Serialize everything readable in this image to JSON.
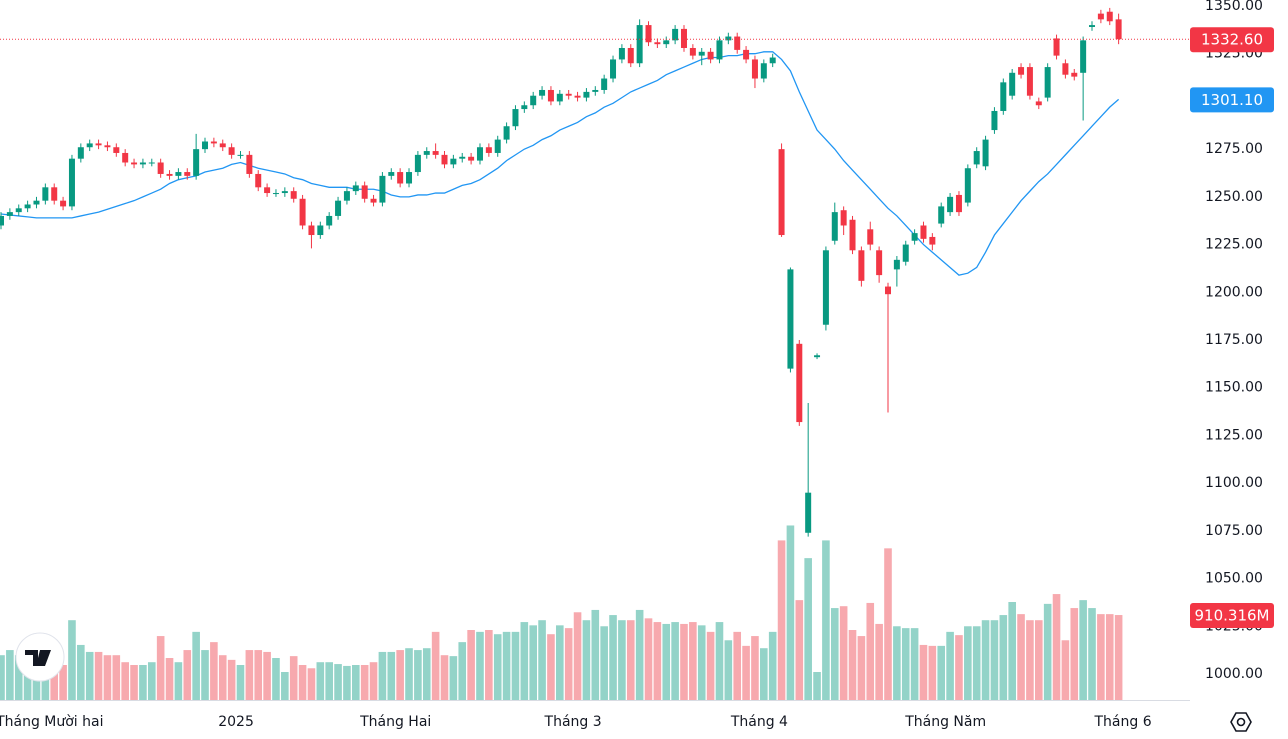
{
  "chart_data": {
    "type": "candlestick",
    "ylim": [
      1000,
      1350
    ],
    "yticks": [
      {
        "value": 1000,
        "label": "1000.00"
      },
      {
        "value": 1025,
        "label": "1025.00"
      },
      {
        "value": 1050,
        "label": "1050.00"
      },
      {
        "value": 1075,
        "label": "1075.00"
      },
      {
        "value": 1100,
        "label": "1100.00"
      },
      {
        "value": 1125,
        "label": "1125.00"
      },
      {
        "value": 1150,
        "label": "1150.00"
      },
      {
        "value": 1175,
        "label": "1175.00"
      },
      {
        "value": 1200,
        "label": "1200.00"
      },
      {
        "value": 1225,
        "label": "1225.00"
      },
      {
        "value": 1250,
        "label": "1250.00"
      },
      {
        "value": 1275,
        "label": "1275.00"
      },
      {
        "value": 1300,
        "label": "1300.00"
      },
      {
        "value": 1325,
        "label": "1325.00"
      },
      {
        "value": 1350,
        "label": "1350.00"
      }
    ],
    "time_labels": [
      {
        "index": 6,
        "label": "Tháng Mười hai"
      },
      {
        "index": 27,
        "label": "2025"
      },
      {
        "index": 45,
        "label": "Tháng Hai"
      },
      {
        "index": 65,
        "label": "Tháng 3"
      },
      {
        "index": 86,
        "label": "Tháng 4"
      },
      {
        "index": 107,
        "label": "Tháng Năm"
      },
      {
        "index": 127,
        "label": "Tháng 6"
      }
    ],
    "up_color": "#089981",
    "down_color": "#f23645",
    "volume_up_color": "#93d3c8",
    "volume_down_color": "#f7a9ae",
    "ma_color": "#2196f3",
    "candles": {
      "open": [
        1235,
        1240,
        1242,
        1244,
        1246,
        1248,
        1255,
        1248,
        1245,
        1270,
        1276,
        1278,
        1277,
        1276,
        1273,
        1268,
        1267,
        1268,
        1268,
        1262,
        1261,
        1263,
        1261,
        1275,
        1279,
        1278,
        1276,
        1272,
        1272,
        1262,
        1255,
        1252,
        1252,
        1253,
        1249,
        1235,
        1230,
        1235,
        1240,
        1248,
        1253,
        1256,
        1249,
        1247,
        1261,
        1263,
        1257,
        1263,
        1272,
        1274,
        1272,
        1267,
        1270,
        1271,
        1269,
        1276,
        1273,
        1280,
        1287,
        1296,
        1298,
        1303,
        1306,
        1300,
        1304,
        1303,
        1302,
        1305,
        1306,
        1312,
        1322,
        1328,
        1320,
        1340,
        1331,
        1330,
        1332,
        1338,
        1328,
        1324,
        1326,
        1322,
        1332,
        1334,
        1327,
        1322,
        1312,
        1320,
        1275,
        1160,
        1173,
        1074,
        1166,
        1183,
        1227,
        1243,
        1238,
        1222,
        1233,
        1222,
        1203,
        1212,
        1216,
        1227,
        1235,
        1229,
        1236,
        1242,
        1251,
        1247,
        1267,
        1266,
        1285,
        1295,
        1303,
        1318,
        1318,
        1300,
        1302,
        1333,
        1320,
        1315,
        1315,
        1339,
        1346,
        1347,
        1343
      ],
      "high": [
        1242,
        1244,
        1246,
        1248,
        1250,
        1257,
        1257,
        1250,
        1272,
        1278,
        1280,
        1280,
        1279,
        1278,
        1275,
        1270,
        1270,
        1270,
        1270,
        1264,
        1265,
        1265,
        1283,
        1281,
        1281,
        1280,
        1278,
        1274,
        1274,
        1264,
        1257,
        1254,
        1255,
        1255,
        1251,
        1237,
        1237,
        1242,
        1250,
        1255,
        1258,
        1258,
        1251,
        1263,
        1265,
        1265,
        1265,
        1274,
        1276,
        1278,
        1274,
        1272,
        1273,
        1273,
        1278,
        1278,
        1282,
        1289,
        1298,
        1300,
        1305,
        1308,
        1308,
        1306,
        1306,
        1305,
        1307,
        1308,
        1314,
        1324,
        1330,
        1330,
        1343,
        1342,
        1333,
        1334,
        1340,
        1340,
        1330,
        1328,
        1328,
        1334,
        1336,
        1336,
        1329,
        1324,
        1322,
        1325,
        1278,
        1213,
        1175,
        1142,
        1168,
        1224,
        1247,
        1245,
        1240,
        1224,
        1237,
        1224,
        1205,
        1219,
        1227,
        1233,
        1237,
        1231,
        1247,
        1252,
        1253,
        1267,
        1276,
        1282,
        1297,
        1312,
        1317,
        1320,
        1320,
        1302,
        1320,
        1335,
        1322,
        1317,
        1334,
        1342,
        1348,
        1349,
        1346
      ],
      "low": [
        1233,
        1238,
        1240,
        1242,
        1244,
        1246,
        1246,
        1243,
        1243,
        1268,
        1274,
        1275,
        1274,
        1271,
        1266,
        1265,
        1265,
        1266,
        1260,
        1259,
        1259,
        1259,
        1259,
        1273,
        1276,
        1274,
        1270,
        1270,
        1260,
        1253,
        1250,
        1250,
        1250,
        1247,
        1233,
        1223,
        1228,
        1233,
        1238,
        1246,
        1251,
        1247,
        1245,
        1245,
        1259,
        1255,
        1255,
        1261,
        1270,
        1270,
        1265,
        1265,
        1268,
        1267,
        1267,
        1271,
        1271,
        1278,
        1285,
        1294,
        1296,
        1301,
        1298,
        1298,
        1301,
        1300,
        1300,
        1303,
        1304,
        1310,
        1320,
        1318,
        1318,
        1329,
        1328,
        1328,
        1330,
        1326,
        1322,
        1319,
        1320,
        1320,
        1330,
        1325,
        1320,
        1307,
        1310,
        1318,
        1229,
        1158,
        1130,
        1072,
        1165,
        1180,
        1225,
        1230,
        1220,
        1203,
        1222,
        1205,
        1137,
        1203,
        1214,
        1225,
        1226,
        1222,
        1234,
        1240,
        1240,
        1245,
        1265,
        1264,
        1283,
        1293,
        1301,
        1312,
        1301,
        1296,
        1300,
        1322,
        1312,
        1311,
        1290,
        1337,
        1341,
        1340,
        1330
      ],
      "close": [
        1240,
        1242,
        1244,
        1246,
        1248,
        1255,
        1248,
        1245,
        1270,
        1276,
        1278,
        1277,
        1276,
        1273,
        1268,
        1267,
        1268,
        1268,
        1262,
        1261,
        1263,
        1261,
        1275,
        1279,
        1278,
        1276,
        1272,
        1272,
        1262,
        1255,
        1252,
        1252,
        1253,
        1249,
        1235,
        1230,
        1235,
        1240,
        1248,
        1253,
        1256,
        1249,
        1247,
        1261,
        1263,
        1257,
        1263,
        1272,
        1274,
        1272,
        1267,
        1270,
        1271,
        1269,
        1276,
        1273,
        1280,
        1287,
        1296,
        1298,
        1303,
        1306,
        1300,
        1304,
        1303,
        1302,
        1305,
        1306,
        1312,
        1322,
        1328,
        1320,
        1340,
        1331,
        1330,
        1332,
        1338,
        1328,
        1324,
        1326,
        1322,
        1332,
        1334,
        1327,
        1322,
        1312,
        1320,
        1323,
        1230,
        1212,
        1132,
        1095,
        1167,
        1222,
        1242,
        1235,
        1222,
        1206,
        1225,
        1209,
        1199,
        1217,
        1225,
        1231,
        1228,
        1225,
        1245,
        1250,
        1242,
        1265,
        1274,
        1280,
        1295,
        1310,
        1315,
        1314,
        1303,
        1298,
        1318,
        1324,
        1314,
        1313,
        1332,
        1340,
        1343,
        1342,
        1332.6
      ]
    },
    "ma": [
      1241,
      1240.5,
      1240,
      1239.5,
      1239,
      1239,
      1239,
      1239,
      1239,
      1240,
      1241,
      1242,
      1243.5,
      1245,
      1246.5,
      1248,
      1250,
      1252,
      1254,
      1257,
      1259,
      1260,
      1261,
      1263,
      1264,
      1265,
      1267,
      1268,
      1266.5,
      1265,
      1264,
      1263,
      1262,
      1260,
      1259,
      1257,
      1256,
      1255,
      1255,
      1255,
      1254,
      1254,
      1254,
      1253,
      1251,
      1250,
      1250,
      1251,
      1251,
      1252,
      1252,
      1254,
      1256,
      1257,
      1259,
      1262,
      1265,
      1269,
      1272,
      1275,
      1277,
      1280,
      1282,
      1285,
      1287,
      1289,
      1292,
      1294,
      1297,
      1299,
      1302,
      1305,
      1307,
      1309,
      1311,
      1314,
      1316,
      1318,
      1320,
      1322,
      1323,
      1323,
      1324,
      1324,
      1325,
      1325,
      1326,
      1326,
      1322,
      1316,
      1305,
      1295,
      1285,
      1280,
      1275,
      1269,
      1264,
      1259,
      1254,
      1249,
      1244,
      1240,
      1235,
      1230,
      1225,
      1221,
      1217,
      1213,
      1209,
      1210,
      1213,
      1221,
      1230,
      1236,
      1242,
      1248,
      1253,
      1258,
      1262,
      1267,
      1272,
      1277,
      1282,
      1287,
      1292,
      1297,
      1301.1
    ],
    "volume_lim": [
      0,
      7500
    ],
    "volume": [
      480,
      535,
      480,
      535,
      430,
      535,
      480,
      375,
      855,
      590,
      515,
      515,
      480,
      480,
      405,
      375,
      375,
      405,
      685,
      450,
      405,
      535,
      730,
      535,
      620,
      480,
      430,
      375,
      535,
      535,
      515,
      450,
      300,
      470,
      375,
      340,
      405,
      405,
      385,
      365,
      375,
      375,
      405,
      515,
      515,
      535,
      555,
      535,
      555,
      730,
      480,
      470,
      620,
      750,
      730,
      750,
      705,
      730,
      730,
      835,
      800,
      855,
      705,
      800,
      770,
      940,
      855,
      965,
      790,
      910,
      855,
      855,
      965,
      875,
      835,
      815,
      835,
      815,
      835,
      800,
      730,
      835,
      640,
      730,
      580,
      685,
      555,
      730,
      1710,
      1870,
      1070,
      1520,
      300,
      1710,
      985,
      1005,
      750,
      685,
      1040,
      815,
      1625,
      790,
      770,
      770,
      590,
      580,
      580,
      730,
      695,
      790,
      790,
      855,
      855,
      910,
      1050,
      920,
      855,
      855,
      1030,
      1135,
      640,
      985,
      1070,
      985,
      920,
      920,
      910.316
    ],
    "last_price_label": "1332.60",
    "ma_last_label": "1301.10",
    "volume_last_label": "910.316M"
  }
}
